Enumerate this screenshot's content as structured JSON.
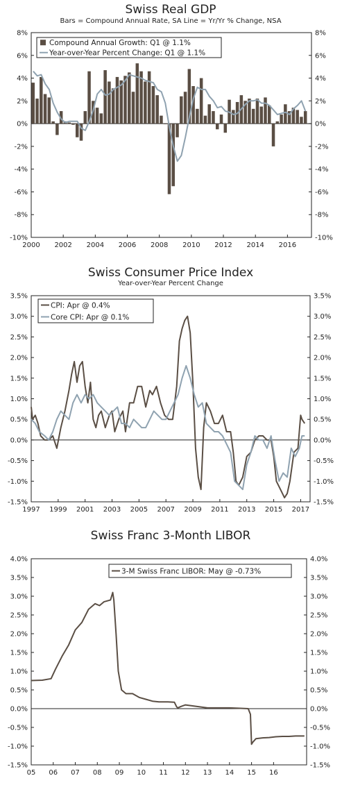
{
  "colors": {
    "bar": "#5a4e44",
    "yoy": "#8fa2b0",
    "cpi": "#5a4e44",
    "core": "#8fa2b0",
    "libor": "#5a4e44",
    "frame": "#222222"
  },
  "chart_data": [
    {
      "type": "bar",
      "title": "Swiss Real GDP",
      "subtitle": "Bars = Compound Annual Rate, SA      Line = Yr/Yr % Change, NSA",
      "ylim": [
        -10,
        8
      ],
      "yticks": [
        "-10%",
        "-8%",
        "-6%",
        "-4%",
        "-2%",
        "0%",
        "2%",
        "4%",
        "6%",
        "8%"
      ],
      "xticks": [
        "2000",
        "2002",
        "2004",
        "2006",
        "2008",
        "2010",
        "2012",
        "2014",
        "2016"
      ],
      "xlim": [
        2000.0,
        2017.5
      ],
      "legend_position": "top-left",
      "grid": false,
      "series": [
        {
          "name": "Compound Annual Growth: Q1 @ 1.1%",
          "type": "bar",
          "x": [
            2000.0,
            2000.25,
            2000.5,
            2000.75,
            2001.0,
            2001.25,
            2001.5,
            2001.75,
            2002.0,
            2002.25,
            2002.5,
            2002.75,
            2003.0,
            2003.25,
            2003.5,
            2003.75,
            2004.0,
            2004.25,
            2004.5,
            2004.75,
            2005.0,
            2005.25,
            2005.5,
            2005.75,
            2006.0,
            2006.25,
            2006.5,
            2006.75,
            2007.0,
            2007.25,
            2007.5,
            2007.75,
            2008.0,
            2008.25,
            2008.5,
            2008.75,
            2009.0,
            2009.25,
            2009.5,
            2009.75,
            2010.0,
            2010.25,
            2010.5,
            2010.75,
            2011.0,
            2011.25,
            2011.5,
            2011.75,
            2012.0,
            2012.25,
            2012.5,
            2012.75,
            2013.0,
            2013.25,
            2013.5,
            2013.75,
            2014.0,
            2014.25,
            2014.5,
            2014.75,
            2015.0,
            2015.25,
            2015.5,
            2015.75,
            2016.0,
            2016.25,
            2016.5,
            2016.75,
            2017.0
          ],
          "values": [
            3.6,
            2.2,
            4.1,
            2.6,
            2.3,
            0.2,
            -1.0,
            1.1,
            0.2,
            0.1,
            -0.1,
            -1.2,
            -1.5,
            1.1,
            4.6,
            2.0,
            1.4,
            0.9,
            4.7,
            3.7,
            3.1,
            4.1,
            3.8,
            4.2,
            4.5,
            2.8,
            5.3,
            4.6,
            3.7,
            4.6,
            3.3,
            2.5,
            0.7,
            0.0,
            -6.2,
            -5.5,
            -1.2,
            2.4,
            2.8,
            4.8,
            3.3,
            1.3,
            4.0,
            0.7,
            1.7,
            1.1,
            -0.5,
            0.8,
            -0.8,
            2.1,
            1.2,
            1.9,
            2.5,
            2.0,
            2.2,
            1.3,
            2.2,
            1.5,
            2.3,
            1.6,
            -2.0,
            0.2,
            0.8,
            1.7,
            1.1,
            1.4,
            1.2,
            0.6,
            1.1
          ]
        },
        {
          "name": "Year-over-Year Percent Change: Q1 @ 1.1%",
          "type": "line",
          "x": [
            2000.0,
            2000.25,
            2000.5,
            2000.75,
            2001.0,
            2001.25,
            2001.5,
            2001.75,
            2002.0,
            2002.25,
            2002.5,
            2002.75,
            2003.0,
            2003.25,
            2003.5,
            2003.75,
            2004.0,
            2004.25,
            2004.5,
            2004.75,
            2005.0,
            2005.25,
            2005.5,
            2005.75,
            2006.0,
            2006.25,
            2006.5,
            2006.75,
            2007.0,
            2007.25,
            2007.5,
            2007.75,
            2008.0,
            2008.25,
            2008.5,
            2008.75,
            2009.0,
            2009.25,
            2009.5,
            2009.75,
            2010.0,
            2010.25,
            2010.5,
            2010.75,
            2011.0,
            2011.25,
            2011.5,
            2011.75,
            2012.0,
            2012.25,
            2012.5,
            2012.75,
            2013.0,
            2013.25,
            2013.5,
            2013.75,
            2014.0,
            2014.25,
            2014.5,
            2014.75,
            2015.0,
            2015.25,
            2015.5,
            2015.75,
            2016.0,
            2016.25,
            2016.5,
            2016.75,
            2017.0
          ],
          "values": [
            4.6,
            4.2,
            4.3,
            3.5,
            3.0,
            1.8,
            1.0,
            0.4,
            0.1,
            0.2,
            0.2,
            0.2,
            -0.4,
            -0.6,
            0.2,
            1.2,
            2.6,
            3.0,
            2.5,
            2.6,
            3.0,
            3.2,
            3.4,
            3.8,
            4.3,
            4.2,
            4.1,
            4.0,
            3.8,
            3.7,
            3.6,
            3.0,
            2.8,
            1.8,
            -0.3,
            -2.0,
            -3.3,
            -2.8,
            -1.2,
            0.6,
            2.2,
            3.2,
            3.0,
            3.0,
            2.4,
            2.0,
            1.4,
            1.5,
            1.1,
            1.0,
            0.8,
            0.9,
            1.3,
            1.7,
            2.0,
            2.0,
            2.1,
            1.8,
            1.8,
            1.6,
            1.2,
            0.8,
            0.9,
            1.0,
            0.8,
            1.3,
            1.6,
            2.0,
            1.1
          ]
        }
      ]
    },
    {
      "type": "line",
      "title": "Swiss Consumer Price Index",
      "subtitle": "Year-over-Year Percent Change",
      "ylim": [
        -1.5,
        3.5
      ],
      "yticks": [
        "-1.5%",
        "-1.0%",
        "-0.5%",
        "0.0%",
        "0.5%",
        "1.0%",
        "1.5%",
        "2.0%",
        "2.5%",
        "3.0%",
        "3.5%"
      ],
      "xticks": [
        "1997",
        "1999",
        "2001",
        "2003",
        "2005",
        "2007",
        "2009",
        "2011",
        "2013",
        "2015",
        "2017"
      ],
      "xlim": [
        1997.0,
        2017.7
      ],
      "legend_position": "top-left",
      "grid": false,
      "series": [
        {
          "name": "CPI: Apr @ 0.4%",
          "x": [
            1997.0,
            1997.1,
            1997.3,
            1997.5,
            1997.7,
            1998.0,
            1998.3,
            1998.6,
            1998.9,
            1999.2,
            1999.5,
            1999.8,
            2000.0,
            2000.2,
            2000.4,
            2000.6,
            2000.8,
            2001.0,
            2001.2,
            2001.4,
            2001.6,
            2001.8,
            2002.0,
            2002.2,
            2002.5,
            2002.8,
            2003.0,
            2003.2,
            2003.5,
            2003.8,
            2004.0,
            2004.3,
            2004.6,
            2004.9,
            2005.2,
            2005.5,
            2005.8,
            2006.0,
            2006.3,
            2006.6,
            2006.9,
            2007.2,
            2007.5,
            2007.8,
            2008.0,
            2008.2,
            2008.4,
            2008.6,
            2008.8,
            2009.0,
            2009.2,
            2009.4,
            2009.6,
            2009.8,
            2010.0,
            2010.3,
            2010.6,
            2010.9,
            2011.2,
            2011.5,
            2011.8,
            2012.0,
            2012.2,
            2012.4,
            2012.7,
            2013.0,
            2013.3,
            2013.6,
            2013.9,
            2014.2,
            2014.5,
            2014.8,
            2015.0,
            2015.2,
            2015.5,
            2015.8,
            2016.0,
            2016.2,
            2016.5,
            2016.8,
            2017.0,
            2017.1,
            2017.3
          ],
          "values": [
            0.8,
            0.5,
            0.6,
            0.4,
            0.1,
            0.0,
            0.0,
            0.1,
            -0.2,
            0.3,
            0.7,
            1.2,
            1.6,
            1.9,
            1.4,
            1.8,
            1.9,
            1.3,
            0.9,
            1.4,
            0.5,
            0.3,
            0.6,
            0.7,
            0.3,
            0.6,
            0.7,
            0.2,
            0.5,
            0.7,
            0.2,
            0.9,
            0.9,
            1.3,
            1.3,
            0.8,
            1.2,
            1.1,
            1.3,
            0.9,
            0.6,
            0.5,
            0.5,
            1.3,
            2.4,
            2.7,
            2.9,
            3.0,
            2.6,
            1.4,
            -0.2,
            -0.9,
            -1.2,
            0.3,
            0.9,
            0.7,
            0.4,
            0.4,
            0.6,
            0.2,
            0.2,
            -0.3,
            -1.0,
            -1.1,
            -0.9,
            -0.4,
            -0.3,
            0.0,
            0.1,
            0.1,
            0.0,
            0.0,
            -0.4,
            -1.0,
            -1.2,
            -1.4,
            -1.3,
            -1.0,
            -0.3,
            -0.2,
            0.6,
            0.5,
            0.4
          ]
        },
        {
          "name": "Core CPI: Apr @ 0.1%",
          "x": [
            1997.0,
            1997.3,
            1997.6,
            1998.0,
            1998.3,
            1998.6,
            1998.9,
            1999.2,
            1999.5,
            1999.8,
            2000.1,
            2000.4,
            2000.7,
            2001.0,
            2001.3,
            2001.6,
            2001.9,
            2002.2,
            2002.5,
            2002.8,
            2003.1,
            2003.4,
            2003.7,
            2004.0,
            2004.3,
            2004.6,
            2004.9,
            2005.2,
            2005.5,
            2005.8,
            2006.1,
            2006.4,
            2006.7,
            2007.0,
            2007.3,
            2007.6,
            2007.9,
            2008.2,
            2008.5,
            2008.8,
            2009.1,
            2009.4,
            2009.7,
            2010.0,
            2010.3,
            2010.6,
            2010.9,
            2011.2,
            2011.5,
            2011.8,
            2012.1,
            2012.4,
            2012.7,
            2013.0,
            2013.3,
            2013.6,
            2013.9,
            2014.2,
            2014.5,
            2014.8,
            2015.1,
            2015.4,
            2015.7,
            2016.0,
            2016.3,
            2016.6,
            2016.9,
            2017.1,
            2017.3
          ],
          "values": [
            0.5,
            0.4,
            0.2,
            0.1,
            0.0,
            0.2,
            0.5,
            0.7,
            0.6,
            0.5,
            0.9,
            1.1,
            0.9,
            1.1,
            1.0,
            1.1,
            0.9,
            0.8,
            0.7,
            0.6,
            0.7,
            0.8,
            0.4,
            0.4,
            0.3,
            0.5,
            0.4,
            0.3,
            0.3,
            0.5,
            0.7,
            0.6,
            0.5,
            0.5,
            0.7,
            0.9,
            1.1,
            1.5,
            1.8,
            1.5,
            1.1,
            0.8,
            0.9,
            0.4,
            0.3,
            0.2,
            0.2,
            0.1,
            -0.1,
            -0.3,
            -1.0,
            -1.1,
            -1.2,
            -0.6,
            -0.3,
            0.1,
            0.0,
            0.0,
            -0.2,
            0.1,
            -0.5,
            -1.0,
            -0.8,
            -0.9,
            -0.2,
            -0.4,
            -0.2,
            0.1,
            0.1
          ]
        }
      ]
    },
    {
      "type": "line",
      "title": "Swiss Franc 3-Month LIBOR",
      "ylim": [
        -1.5,
        4.0
      ],
      "yticks": [
        "-1.5%",
        "-1.0%",
        "-0.5%",
        "0.0%",
        "0.5%",
        "1.0%",
        "1.5%",
        "2.0%",
        "2.5%",
        "3.0%",
        "3.5%",
        "4.0%"
      ],
      "xticks": [
        "05",
        "06",
        "07",
        "08",
        "09",
        "10",
        "11",
        "12",
        "13",
        "14",
        "15",
        "16"
      ],
      "xlim": [
        2005.0,
        2017.5
      ],
      "legend_position": "top-right",
      "grid": false,
      "series": [
        {
          "name": "3-M Swiss Franc LIBOR: May @ -0.73%",
          "x": [
            2005.0,
            2005.5,
            2005.9,
            2006.1,
            2006.4,
            2006.7,
            2007.0,
            2007.3,
            2007.6,
            2007.9,
            2008.1,
            2008.3,
            2008.6,
            2008.7,
            2008.75,
            2008.85,
            2008.95,
            2009.1,
            2009.3,
            2009.6,
            2009.9,
            2010.2,
            2010.5,
            2010.8,
            2011.2,
            2011.5,
            2011.6,
            2011.65,
            2011.8,
            2012.0,
            2012.5,
            2013.0,
            2013.5,
            2014.0,
            2014.5,
            2014.85,
            2014.95,
            2015.0,
            2015.05,
            2015.2,
            2015.5,
            2015.8,
            2016.1,
            2016.4,
            2016.7,
            2017.0,
            2017.4
          ],
          "values": [
            0.75,
            0.76,
            0.8,
            1.05,
            1.4,
            1.7,
            2.1,
            2.3,
            2.65,
            2.8,
            2.75,
            2.85,
            2.9,
            3.1,
            2.9,
            2.0,
            1.0,
            0.5,
            0.4,
            0.4,
            0.3,
            0.25,
            0.2,
            0.18,
            0.18,
            0.17,
            0.05,
            0.02,
            0.06,
            0.1,
            0.06,
            0.02,
            0.02,
            0.02,
            0.01,
            0.0,
            -0.15,
            -0.95,
            -0.9,
            -0.8,
            -0.78,
            -0.77,
            -0.75,
            -0.74,
            -0.74,
            -0.73,
            -0.73
          ]
        }
      ]
    }
  ]
}
